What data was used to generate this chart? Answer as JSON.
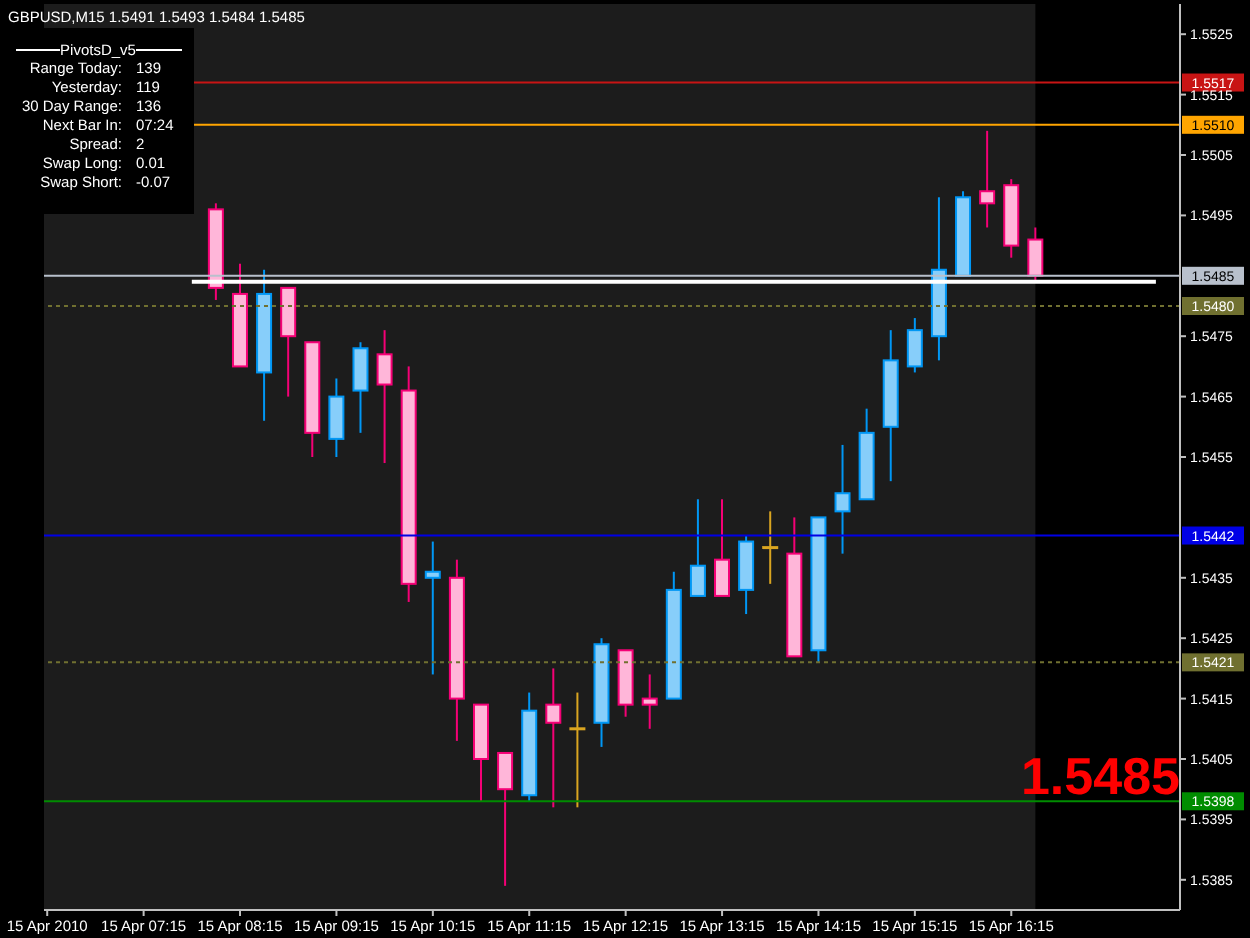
{
  "chart_data": {
    "type": "candlestick",
    "title": "GBPUSD,M15 1.5491 1.5493 1.5484 1.5485",
    "x": [
      "2010-04-15T08:00",
      "2010-04-15T08:15",
      "2010-04-15T08:30",
      "2010-04-15T08:45",
      "2010-04-15T09:00",
      "2010-04-15T09:15",
      "2010-04-15T09:30",
      "2010-04-15T09:45",
      "2010-04-15T10:00",
      "2010-04-15T10:15",
      "2010-04-15T10:30",
      "2010-04-15T10:45",
      "2010-04-15T11:00",
      "2010-04-15T11:15",
      "2010-04-15T11:30",
      "2010-04-15T11:45",
      "2010-04-15T12:00",
      "2010-04-15T12:15",
      "2010-04-15T12:30",
      "2010-04-15T12:45",
      "2010-04-15T13:00",
      "2010-04-15T13:15",
      "2010-04-15T13:30",
      "2010-04-15T13:45",
      "2010-04-15T14:00",
      "2010-04-15T14:15",
      "2010-04-15T14:30",
      "2010-04-15T14:45",
      "2010-04-15T15:00",
      "2010-04-15T15:15",
      "2010-04-15T15:30",
      "2010-04-15T15:45",
      "2010-04-15T16:00",
      "2010-04-15T16:15",
      "2010-04-15T16:30"
    ],
    "ohlc": [
      [
        1.5496,
        1.5497,
        1.5481,
        1.5483
      ],
      [
        1.5482,
        1.5487,
        1.547,
        1.547
      ],
      [
        1.5469,
        1.5486,
        1.5461,
        1.5482
      ],
      [
        1.5483,
        1.5483,
        1.5465,
        1.5475
      ],
      [
        1.5474,
        1.5474,
        1.5455,
        1.5459
      ],
      [
        1.5458,
        1.5468,
        1.5455,
        1.5465
      ],
      [
        1.5466,
        1.5474,
        1.5459,
        1.5473
      ],
      [
        1.5472,
        1.5476,
        1.5454,
        1.5467
      ],
      [
        1.5466,
        1.547,
        1.5431,
        1.5434
      ],
      [
        1.5435,
        1.5441,
        1.5419,
        1.5436
      ],
      [
        1.5435,
        1.5438,
        1.5408,
        1.5415
      ],
      [
        1.5414,
        1.5414,
        1.5398,
        1.5405
      ],
      [
        1.5406,
        1.5406,
        1.5384,
        1.54
      ],
      [
        1.5399,
        1.5416,
        1.5398,
        1.5413
      ],
      [
        1.5414,
        1.542,
        1.5397,
        1.5411
      ],
      [
        1.541,
        1.5416,
        1.5397,
        1.541
      ],
      [
        1.5411,
        1.5425,
        1.5407,
        1.5424
      ],
      [
        1.5423,
        1.5423,
        1.5412,
        1.5414
      ],
      [
        1.5415,
        1.5419,
        1.541,
        1.5414
      ],
      [
        1.5415,
        1.5436,
        1.5415,
        1.5433
      ],
      [
        1.5432,
        1.5448,
        1.5432,
        1.5437
      ],
      [
        1.5438,
        1.5448,
        1.5432,
        1.5432
      ],
      [
        1.5433,
        1.5442,
        1.5429,
        1.5441
      ],
      [
        1.544,
        1.5446,
        1.5434,
        1.544
      ],
      [
        1.5439,
        1.5445,
        1.5422,
        1.5422
      ],
      [
        1.5423,
        1.5445,
        1.5421,
        1.5445
      ],
      [
        1.5446,
        1.5457,
        1.5439,
        1.5449
      ],
      [
        1.5448,
        1.5463,
        1.5448,
        1.5459
      ],
      [
        1.546,
        1.5476,
        1.5451,
        1.5471
      ],
      [
        1.547,
        1.5478,
        1.5469,
        1.5476
      ],
      [
        1.5475,
        1.5498,
        1.5471,
        1.5486
      ],
      [
        1.5485,
        1.5499,
        1.5485,
        1.5498
      ],
      [
        1.5499,
        1.5509,
        1.5493,
        1.5497
      ],
      [
        1.55,
        1.5501,
        1.5488,
        1.549
      ],
      [
        1.5491,
        1.5493,
        1.5484,
        1.5485
      ]
    ],
    "colors": [
      "#ffb6d9",
      "#ffb6d9",
      "#87cefa",
      "#ffb6d9",
      "#ffb6d9",
      "#87cefa",
      "#87cefa",
      "#ffb6d9",
      "#ffb6d9",
      "#87cefa",
      "#ffb6d9",
      "#ffb6d9",
      "#ffb6d9",
      "#87cefa",
      "#ffb6d9",
      "#daa520",
      "#87cefa",
      "#ffb6d9",
      "#ffb6d9",
      "#87cefa",
      "#87cefa",
      "#ffb6d9",
      "#87cefa",
      "#daa520",
      "#ffb6d9",
      "#87cefa",
      "#87cefa",
      "#87cefa",
      "#87cefa",
      "#87cefa",
      "#87cefa",
      "#87cefa",
      "#ffb6d9",
      "#ffb6d9",
      "#ffb6d9"
    ],
    "xlim": [
      "2010-04-15T06:13",
      "2010-04-15T18:00"
    ],
    "xticks": [
      {
        "value": "2010-04-15T06:15",
        "label": "15 Apr 2010"
      },
      {
        "value": "2010-04-15T07:15",
        "label": "15 Apr 07:15"
      },
      {
        "value": "2010-04-15T08:15",
        "label": "15 Apr 08:15"
      },
      {
        "value": "2010-04-15T09:15",
        "label": "15 Apr 09:15"
      },
      {
        "value": "2010-04-15T10:15",
        "label": "15 Apr 10:15"
      },
      {
        "value": "2010-04-15T11:15",
        "label": "15 Apr 11:15"
      },
      {
        "value": "2010-04-15T12:15",
        "label": "15 Apr 12:15"
      },
      {
        "value": "2010-04-15T13:15",
        "label": "15 Apr 13:15"
      },
      {
        "value": "2010-04-15T14:15",
        "label": "15 Apr 14:15"
      },
      {
        "value": "2010-04-15T15:15",
        "label": "15 Apr 15:15"
      },
      {
        "value": "2010-04-15T16:15",
        "label": "15 Apr 16:15"
      }
    ],
    "ylim": [
      1.538,
      1.553
    ],
    "yticks": [
      1.5385,
      1.5395,
      1.5405,
      1.5415,
      1.5425,
      1.5435,
      1.5455,
      1.5465,
      1.5475,
      1.5495,
      1.5505,
      1.5515,
      1.5525
    ],
    "ref_lines": [
      {
        "axis": "y",
        "value": 1.5517,
        "label": "1.5517",
        "color": "#c81414"
      },
      {
        "axis": "y",
        "value": 1.551,
        "label": "1.5510",
        "color": "#ffa500"
      },
      {
        "axis": "y",
        "value": 1.5485,
        "label": "1.5485",
        "color": "#b8c0cc"
      },
      {
        "axis": "y",
        "value": 1.548,
        "label": "1.5480",
        "color": "#707030",
        "line_style": "dotted"
      },
      {
        "axis": "y",
        "value": 1.5442,
        "label": "1.5442",
        "color": "#0000e6"
      },
      {
        "axis": "y",
        "value": 1.5421,
        "label": "1.5421",
        "color": "#707030",
        "line_style": "dotted"
      },
      {
        "axis": "y",
        "value": 1.5398,
        "label": "1.5398",
        "color": "#008c00"
      }
    ],
    "bands": [
      {
        "axis": "x",
        "from": "2010-04-15T06:13",
        "to": "2010-04-15T16:30",
        "color": "#1c1c1c"
      }
    ],
    "series": [
      {
        "type": "line",
        "x": [
          "2010-04-15T07:45",
          "2010-04-15T17:45"
        ],
        "values": [
          1.5484,
          1.5484
        ],
        "color": "#ffffff"
      }
    ],
    "annotations": [
      "PivotsD_v5",
      "Range Today:",
      "139",
      "Yesterday:",
      "119",
      "30 Day Range:",
      "136",
      "Next Bar In:",
      "07:24",
      "Spread:",
      "2",
      "Swap Long:",
      "0.01",
      "Swap Short:",
      "-0.07",
      "1.5485"
    ]
  }
}
